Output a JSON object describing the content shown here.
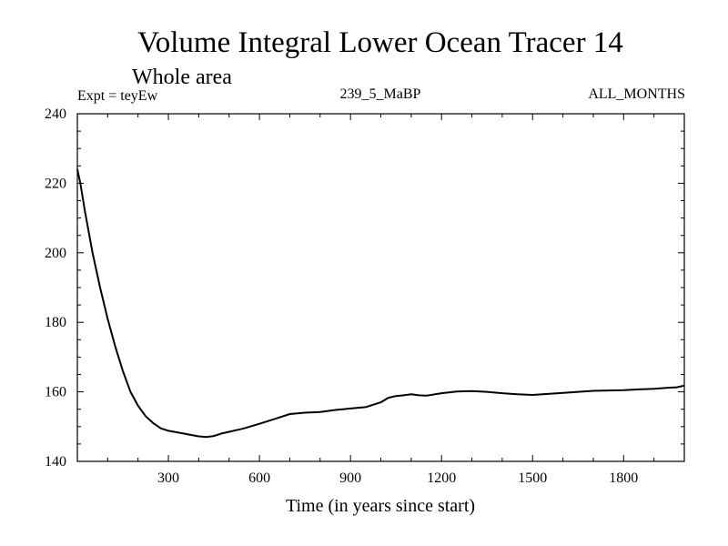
{
  "chart_data": {
    "type": "line",
    "title": "Volume Integral Lower Ocean Tracer 14",
    "subtitle": "Whole area",
    "experiment_label": "Expt = teyEw",
    "run_label": "239_5_MaBP",
    "period_label": "ALL_MONTHS",
    "xlabel": "Time (in years since start)",
    "ylabel": "",
    "xlim": [
      0,
      2000
    ],
    "ylim": [
      140,
      240
    ],
    "xticks": [
      300,
      600,
      900,
      1200,
      1500,
      1800
    ],
    "yticks": [
      140,
      160,
      180,
      200,
      220,
      240
    ],
    "grid": false,
    "series": [
      {
        "name": "Volume Integral Lower Ocean Tracer 14",
        "color": "#000000",
        "x": [
          0,
          10,
          25,
          50,
          75,
          100,
          125,
          150,
          175,
          200,
          225,
          250,
          275,
          300,
          325,
          350,
          375,
          400,
          425,
          450,
          475,
          500,
          550,
          600,
          650,
          700,
          750,
          800,
          850,
          900,
          950,
          1000,
          1025,
          1050,
          1075,
          1100,
          1125,
          1150,
          1200,
          1250,
          1300,
          1350,
          1400,
          1450,
          1500,
          1550,
          1600,
          1650,
          1700,
          1750,
          1800,
          1850,
          1900,
          1950,
          1975,
          2000
        ],
        "values": [
          224,
          220,
          212,
          200,
          190,
          181,
          173,
          166,
          160,
          156,
          153,
          151,
          149.5,
          148.8,
          148.4,
          148.0,
          147.6,
          147.2,
          147.0,
          147.3,
          148.0,
          148.5,
          149.5,
          150.8,
          152.2,
          153.6,
          154.0,
          154.2,
          154.8,
          155.2,
          155.6,
          157.0,
          158.3,
          158.8,
          159.0,
          159.3,
          159.0,
          158.9,
          159.6,
          160.1,
          160.2,
          160.0,
          159.6,
          159.3,
          159.1,
          159.4,
          159.7,
          160.0,
          160.3,
          160.4,
          160.5,
          160.7,
          160.9,
          161.2,
          161.3,
          161.8
        ]
      }
    ]
  }
}
